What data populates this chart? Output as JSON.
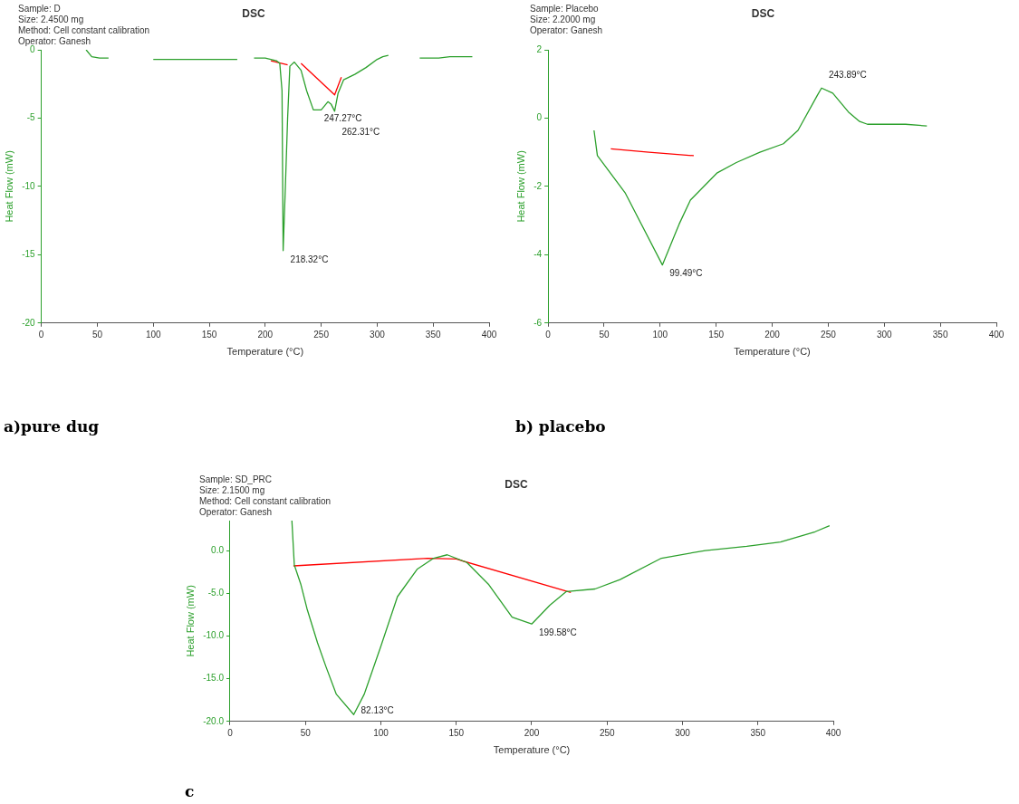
{
  "chart_data": [
    {
      "type": "line",
      "title": "DSC",
      "subtitle": "a)pure dug",
      "xlabel": "Temperature (°C)",
      "ylabel": "Heat Flow (mW)",
      "xlim": [
        0,
        400
      ],
      "xticks": [
        0,
        50,
        100,
        150,
        200,
        250,
        300,
        350,
        400
      ],
      "ylim": [
        -20,
        0
      ],
      "yticks": [
        0,
        -5,
        -10,
        -15,
        -20
      ],
      "grid": false,
      "legend": false,
      "marker": "none",
      "annotations": [
        "Sample: D",
        "Size: 2.4500 mg",
        "Method: Cell constant calibration",
        "Operator: Ganesh",
        {
          "text": "218.32°C",
          "x": 216,
          "y": -14.7
        },
        {
          "text": "247.27°C",
          "x": 246,
          "y": -4.4
        },
        {
          "text": "262.31°C",
          "x": 262,
          "y": -4.5
        }
      ],
      "series": [
        {
          "color": "#2ca02c",
          "x": [
            40,
            45,
            52,
            60,
            80,
            100,
            175,
            185,
            190,
            200,
            210,
            213,
            215,
            216,
            218,
            220,
            222,
            226,
            232,
            237,
            243,
            250,
            256,
            259,
            262,
            265,
            270,
            280,
            290,
            300,
            305,
            310,
            318,
            338,
            355,
            365,
            385
          ],
          "values": [
            0,
            -0.5,
            -0.6,
            -0.6,
            null,
            -0.7,
            -0.7,
            null,
            -0.6,
            -0.6,
            -0.8,
            -1.0,
            -3,
            -14.7,
            -10,
            -5,
            -1.2,
            -0.9,
            -1.5,
            -3.0,
            -4.4,
            -4.4,
            -3.8,
            -4.0,
            -4.5,
            -3.2,
            -2.2,
            -1.8,
            -1.3,
            -0.7,
            -0.5,
            -0.4,
            null,
            -0.6,
            -0.6,
            -0.5,
            -0.5
          ]
        },
        {
          "color": "#ff0000",
          "x": [
            205,
            220,
            226,
            232,
            262,
            268
          ],
          "values": [
            -0.8,
            -1.1,
            null,
            -1.0,
            -3.3,
            -2.0
          ]
        }
      ]
    },
    {
      "type": "line",
      "title": "DSC",
      "subtitle": "b) placebo",
      "xlabel": "Temperature (°C)",
      "ylabel": "Heat Flow (mW)",
      "xlim": [
        0,
        400
      ],
      "xticks": [
        0,
        50,
        100,
        150,
        200,
        250,
        300,
        350,
        400
      ],
      "ylim": [
        -6,
        2
      ],
      "yticks": [
        2,
        0,
        -2,
        -4,
        -6
      ],
      "grid": false,
      "legend": false,
      "marker": "none",
      "annotations": [
        "Sample: Placebo",
        "Size: 2.2000 mg",
        "Operator: Ganesh",
        {
          "text": "99.49°C",
          "x": 102,
          "y": -4.3
        },
        {
          "text": "243.89°C",
          "x": 244,
          "y": 0.88
        }
      ],
      "series": [
        {
          "color": "#2ca02c",
          "x": [
            41,
            44,
            69,
            102,
            117,
            127,
            151,
            168,
            189,
            210,
            223,
            240,
            244,
            254,
            268,
            278,
            285,
            319,
            338
          ],
          "values": [
            -0.36,
            -1.1,
            -2.2,
            -4.3,
            -3.1,
            -2.4,
            -1.6,
            -1.3,
            -1.0,
            -0.75,
            -0.36,
            0.65,
            0.88,
            0.73,
            0.18,
            -0.1,
            -0.18,
            -0.18,
            -0.23
          ]
        },
        {
          "color": "#ff0000",
          "x": [
            56,
            90,
            130
          ],
          "values": [
            -0.9,
            -1.0,
            -1.1
          ]
        }
      ]
    },
    {
      "type": "line",
      "title": "DSC",
      "subtitle": "c",
      "xlabel": "Temperature (°C)",
      "ylabel": "Heat Flow (mW)",
      "xlim": [
        0,
        400
      ],
      "xticks": [
        0,
        50,
        100,
        150,
        200,
        250,
        300,
        350,
        400
      ],
      "ylim": [
        -20,
        3.5
      ],
      "yticks": [
        {
          "value": 0,
          "label": "0.0"
        },
        {
          "value": -5,
          "label": "-5.0"
        },
        {
          "value": -10,
          "label": "-10.0"
        },
        {
          "value": -15,
          "label": "-15.0"
        },
        {
          "value": -20,
          "label": "-20.0"
        }
      ],
      "grid": false,
      "legend": false,
      "marker": "none",
      "annotations": [
        "Sample: SD_PRC",
        "Size: 2.1500 mg",
        "Method: Cell constant calibration",
        "Operator: Ganesh",
        {
          "text": "82.13°C",
          "x": 82,
          "y": -19.2
        },
        {
          "text": "199.58°C",
          "x": 200,
          "y": -8.6
        }
      ],
      "series": [
        {
          "color": "#2ca02c",
          "x": [
            41,
            42.6,
            47,
            51,
            58,
            63.6,
            70.4,
            82,
            89,
            100,
            111,
            124,
            135,
            144,
            157,
            171.6,
            187,
            200,
            212,
            223,
            242,
            258.6,
            286,
            315,
            342.6,
            365,
            388,
            397.5
          ],
          "values": [
            3.5,
            -1.7,
            -4.0,
            -6.8,
            -10.8,
            -13.6,
            -16.8,
            -19.2,
            -16.8,
            -11.2,
            -5.4,
            -2.2,
            -0.9,
            -0.5,
            -1.4,
            -4.0,
            -7.8,
            -8.6,
            -6.4,
            -4.8,
            -4.5,
            -3.4,
            -0.9,
            0,
            0.5,
            1.0,
            2.2,
            2.9
          ]
        },
        {
          "color": "#ff0000",
          "x": [
            42,
            131,
            150,
            226
          ],
          "values": [
            -1.8,
            -0.9,
            -1.0,
            -4.9
          ]
        }
      ]
    }
  ]
}
